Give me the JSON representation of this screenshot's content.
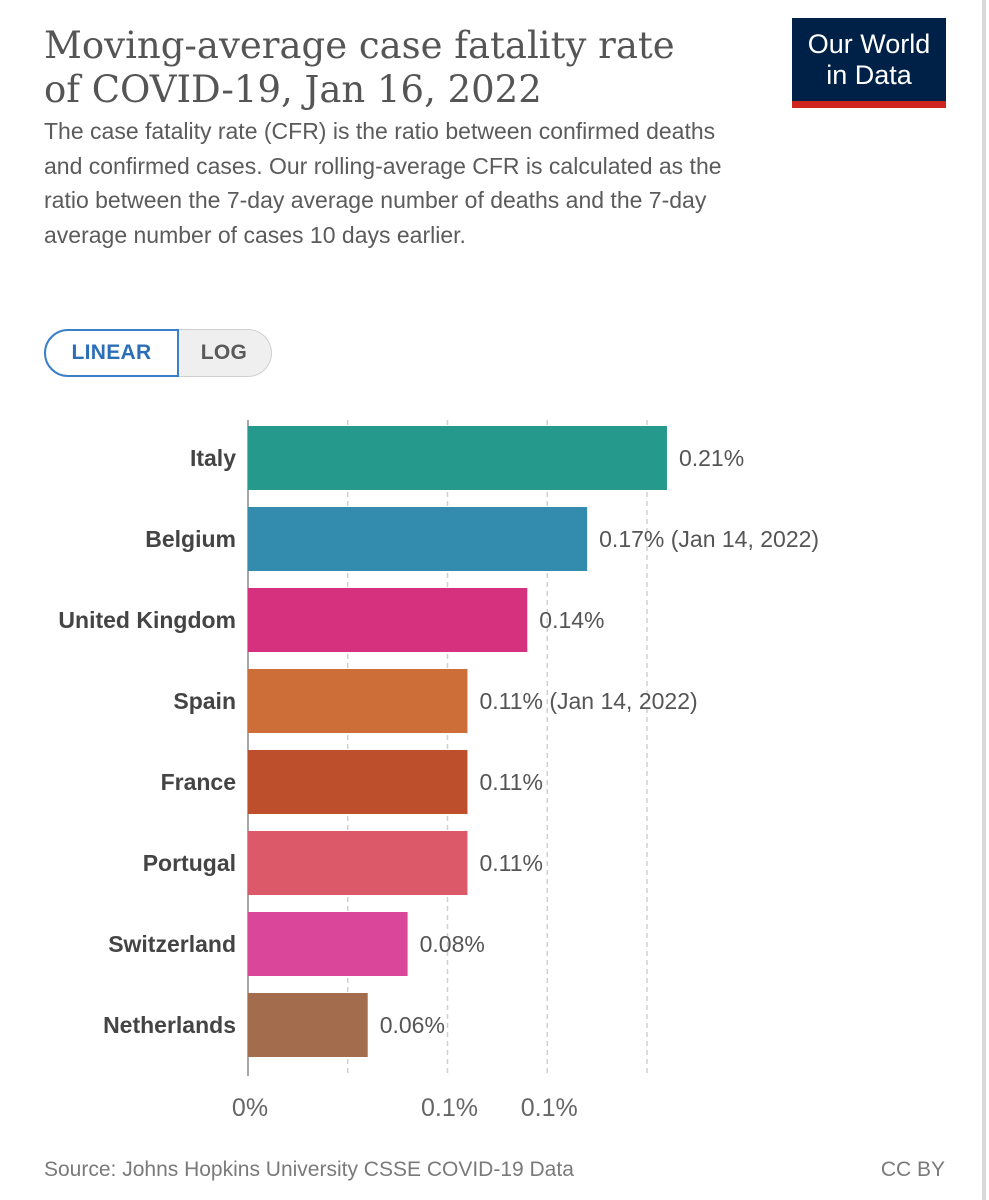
{
  "header": {
    "title_line1": "Moving-average case fatality rate",
    "title_line2": "of COVID-19, Jan 16, 2022",
    "subtitle": "The case fatality rate (CFR) is the ratio between confirmed deaths and confirmed cases. Our rolling-average CFR is calculated as the ratio between the 7-day average number of deaths and the 7-day average number of cases 10 days earlier.",
    "logo_line1": "Our World",
    "logo_line2": "in Data"
  },
  "controls": {
    "linear_label": "LINEAR",
    "log_label": "LOG",
    "selected": "LINEAR"
  },
  "chart_data": {
    "type": "bar",
    "orientation": "horizontal",
    "categories": [
      "Italy",
      "Belgium",
      "United Kingdom",
      "Spain",
      "France",
      "Portugal",
      "Switzerland",
      "Netherlands"
    ],
    "values": [
      0.21,
      0.17,
      0.14,
      0.11,
      0.11,
      0.11,
      0.08,
      0.06
    ],
    "value_labels": [
      "0.21%",
      "0.17% (Jan 14, 2022)",
      "0.14%",
      "0.11% (Jan 14, 2022)",
      "0.11%",
      "0.11%",
      "0.08%",
      "0.06%"
    ],
    "colors": [
      "#25998c",
      "#338cae",
      "#d6317e",
      "#cd6e38",
      "#bd4f2c",
      "#db5969",
      "#d9469a",
      "#a36c4c"
    ],
    "xlim": [
      0,
      0.21
    ],
    "x_tick_labels": [
      "0%",
      "0.1%",
      "0.1%"
    ],
    "grid": "vertical dashed",
    "title": "Moving-average case fatality rate of COVID-19, Jan 16, 2022",
    "xlabel": "",
    "ylabel": ""
  },
  "footer": {
    "source": "Source: Johns Hopkins University CSSE COVID-19 Data",
    "license": "CC BY"
  }
}
